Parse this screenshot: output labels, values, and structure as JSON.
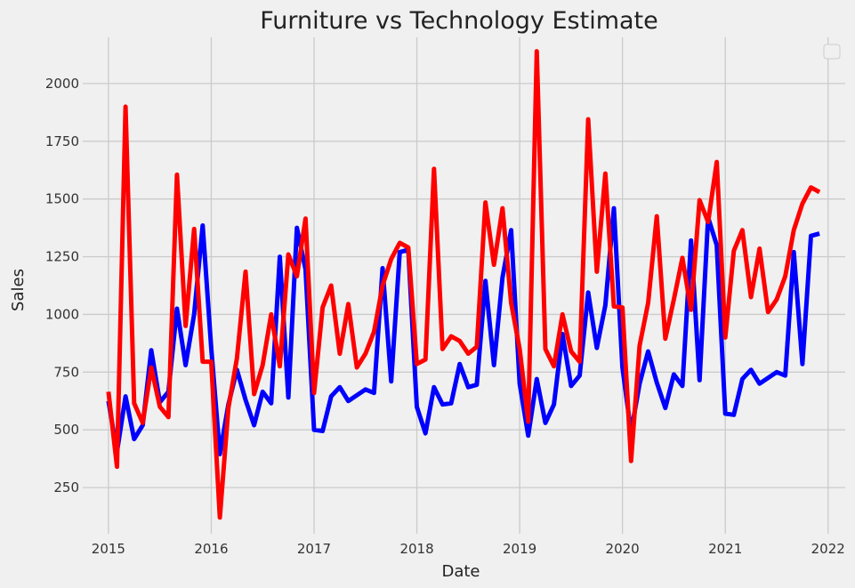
{
  "chart_data": {
    "type": "line",
    "title": "Furniture vs Technology Estimate",
    "xlabel": "Date",
    "ylabel": "Sales",
    "x_ticks": [
      "2015",
      "2016",
      "2017",
      "2018",
      "2019",
      "2020",
      "2021",
      "2022"
    ],
    "y_ticks": [
      "250",
      "500",
      "750",
      "1000",
      "1250",
      "1500",
      "1750",
      "2000"
    ],
    "xlim": [
      "2014-10",
      "2022-03"
    ],
    "ylim": [
      50,
      2200
    ],
    "grid": true,
    "legend": "empty box, top-right",
    "x_dates": [
      "2015-01",
      "2015-02",
      "2015-03",
      "2015-04",
      "2015-05",
      "2015-06",
      "2015-07",
      "2015-08",
      "2015-09",
      "2015-10",
      "2015-11",
      "2015-12",
      "2016-01",
      "2016-02",
      "2016-03",
      "2016-04",
      "2016-05",
      "2016-06",
      "2016-07",
      "2016-08",
      "2016-09",
      "2016-10",
      "2016-11",
      "2016-12",
      "2017-01",
      "2017-02",
      "2017-03",
      "2017-04",
      "2017-05",
      "2017-06",
      "2017-07",
      "2017-08",
      "2017-09",
      "2017-10",
      "2017-11",
      "2017-12",
      "2018-01",
      "2018-02",
      "2018-03",
      "2018-04",
      "2018-05",
      "2018-06",
      "2018-07",
      "2018-08",
      "2018-09",
      "2018-10",
      "2018-11",
      "2018-12",
      "2019-01",
      "2019-02",
      "2019-03",
      "2019-04",
      "2019-05",
      "2019-06",
      "2019-07",
      "2019-08",
      "2019-09",
      "2019-10",
      "2019-11",
      "2019-12",
      "2020-01",
      "2020-02",
      "2020-03",
      "2020-04",
      "2020-05",
      "2020-06",
      "2020-07",
      "2020-08",
      "2020-09",
      "2020-10",
      "2020-11",
      "2020-12",
      "2021-01",
      "2021-02",
      "2021-03",
      "2021-04",
      "2021-05",
      "2021-06",
      "2021-07",
      "2021-08",
      "2021-09",
      "2021-10",
      "2021-11",
      "2021-12"
    ],
    "series": [
      {
        "color": "#0000ff",
        "values": [
          625,
          405,
          645,
          460,
          520,
          845,
          620,
          665,
          1025,
          780,
          1000,
          1385,
          855,
          395,
          610,
          760,
          630,
          520,
          665,
          615,
          1250,
          640,
          1375,
          1195,
          500,
          495,
          645,
          685,
          625,
          650,
          675,
          660,
          1200,
          710,
          1270,
          1280,
          600,
          485,
          685,
          610,
          615,
          785,
          685,
          695,
          1145,
          780,
          1160,
          1365,
          700,
          475,
          720,
          530,
          610,
          915,
          690,
          735,
          1095,
          855,
          1040,
          1460,
          770,
          490,
          700,
          840,
          705,
          595,
          740,
          690,
          1320,
          715,
          1420,
          1300,
          570,
          565,
          720,
          760,
          700,
          725,
          750,
          735,
          1270,
          785,
          1340,
          1350
        ]
      },
      {
        "color": "#ff0000",
        "values": [
          665,
          340,
          1900,
          615,
          530,
          770,
          600,
          555,
          1605,
          950,
          1370,
          795,
          795,
          120,
          595,
          810,
          1185,
          655,
          780,
          1000,
          775,
          1260,
          1165,
          1415,
          660,
          1030,
          1125,
          830,
          1045,
          770,
          830,
          925,
          1125,
          1240,
          1310,
          1290,
          785,
          805,
          1630,
          850,
          905,
          885,
          830,
          860,
          1485,
          1215,
          1460,
          1050,
          850,
          535,
          2140,
          850,
          775,
          1000,
          840,
          795,
          1845,
          1185,
          1610,
          1035,
          1030,
          365,
          865,
          1050,
          1425,
          895,
          1065,
          1245,
          1020,
          1495,
          1400,
          1660,
          900,
          1275,
          1365,
          1075,
          1285,
          1010,
          1065,
          1165,
          1365,
          1480,
          1550,
          1530
        ]
      }
    ]
  }
}
